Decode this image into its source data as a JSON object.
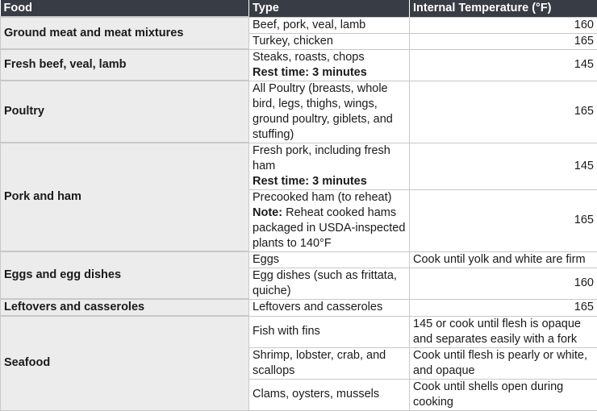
{
  "headers": {
    "food": "Food",
    "type": "Type",
    "temp": "Internal Temperature (°F)"
  },
  "rows": [
    {
      "food": "Ground meat and meat mixtures",
      "type": "Beef, pork, veal, lamb",
      "temp": "160"
    },
    {
      "type": "Turkey, chicken",
      "temp": "165"
    },
    {
      "food": "Fresh beef, veal, lamb",
      "type": "Steaks, roasts, chops",
      "note": "Rest time: 3 minutes",
      "temp": "145"
    },
    {
      "food": "Poultry",
      "type": "All Poultry (breasts, whole bird, legs, thighs, wings, ground poultry, giblets, and stuffing)",
      "temp": "165"
    },
    {
      "food": "Pork and ham",
      "type": "Fresh pork, including fresh ham",
      "note": "Rest time: 3 minutes",
      "temp": "145"
    },
    {
      "type": "Precooked ham (to reheat)",
      "note_label": "Note:",
      "note_text": " Reheat cooked hams packaged in USDA-inspected plants to 140°F",
      "temp": "165"
    },
    {
      "food": "Eggs and egg dishes",
      "type": "Eggs",
      "temp": "Cook until yolk and white are firm"
    },
    {
      "type": "Egg dishes (such as frittata, quiche)",
      "temp": "160"
    },
    {
      "food": "Leftovers and casseroles",
      "type": "Leftovers and casseroles",
      "temp": "165"
    },
    {
      "food": "Seafood",
      "type": "Fish with fins",
      "temp": "145 or cook until flesh is opaque and separates easily with a fork"
    },
    {
      "type": "Shrimp, lobster, crab, and scallops",
      "temp": "Cook until flesh is pearly or white, and opaque"
    },
    {
      "type": "Clams, oysters, mussels",
      "temp": "Cook until shells open during cooking"
    }
  ]
}
